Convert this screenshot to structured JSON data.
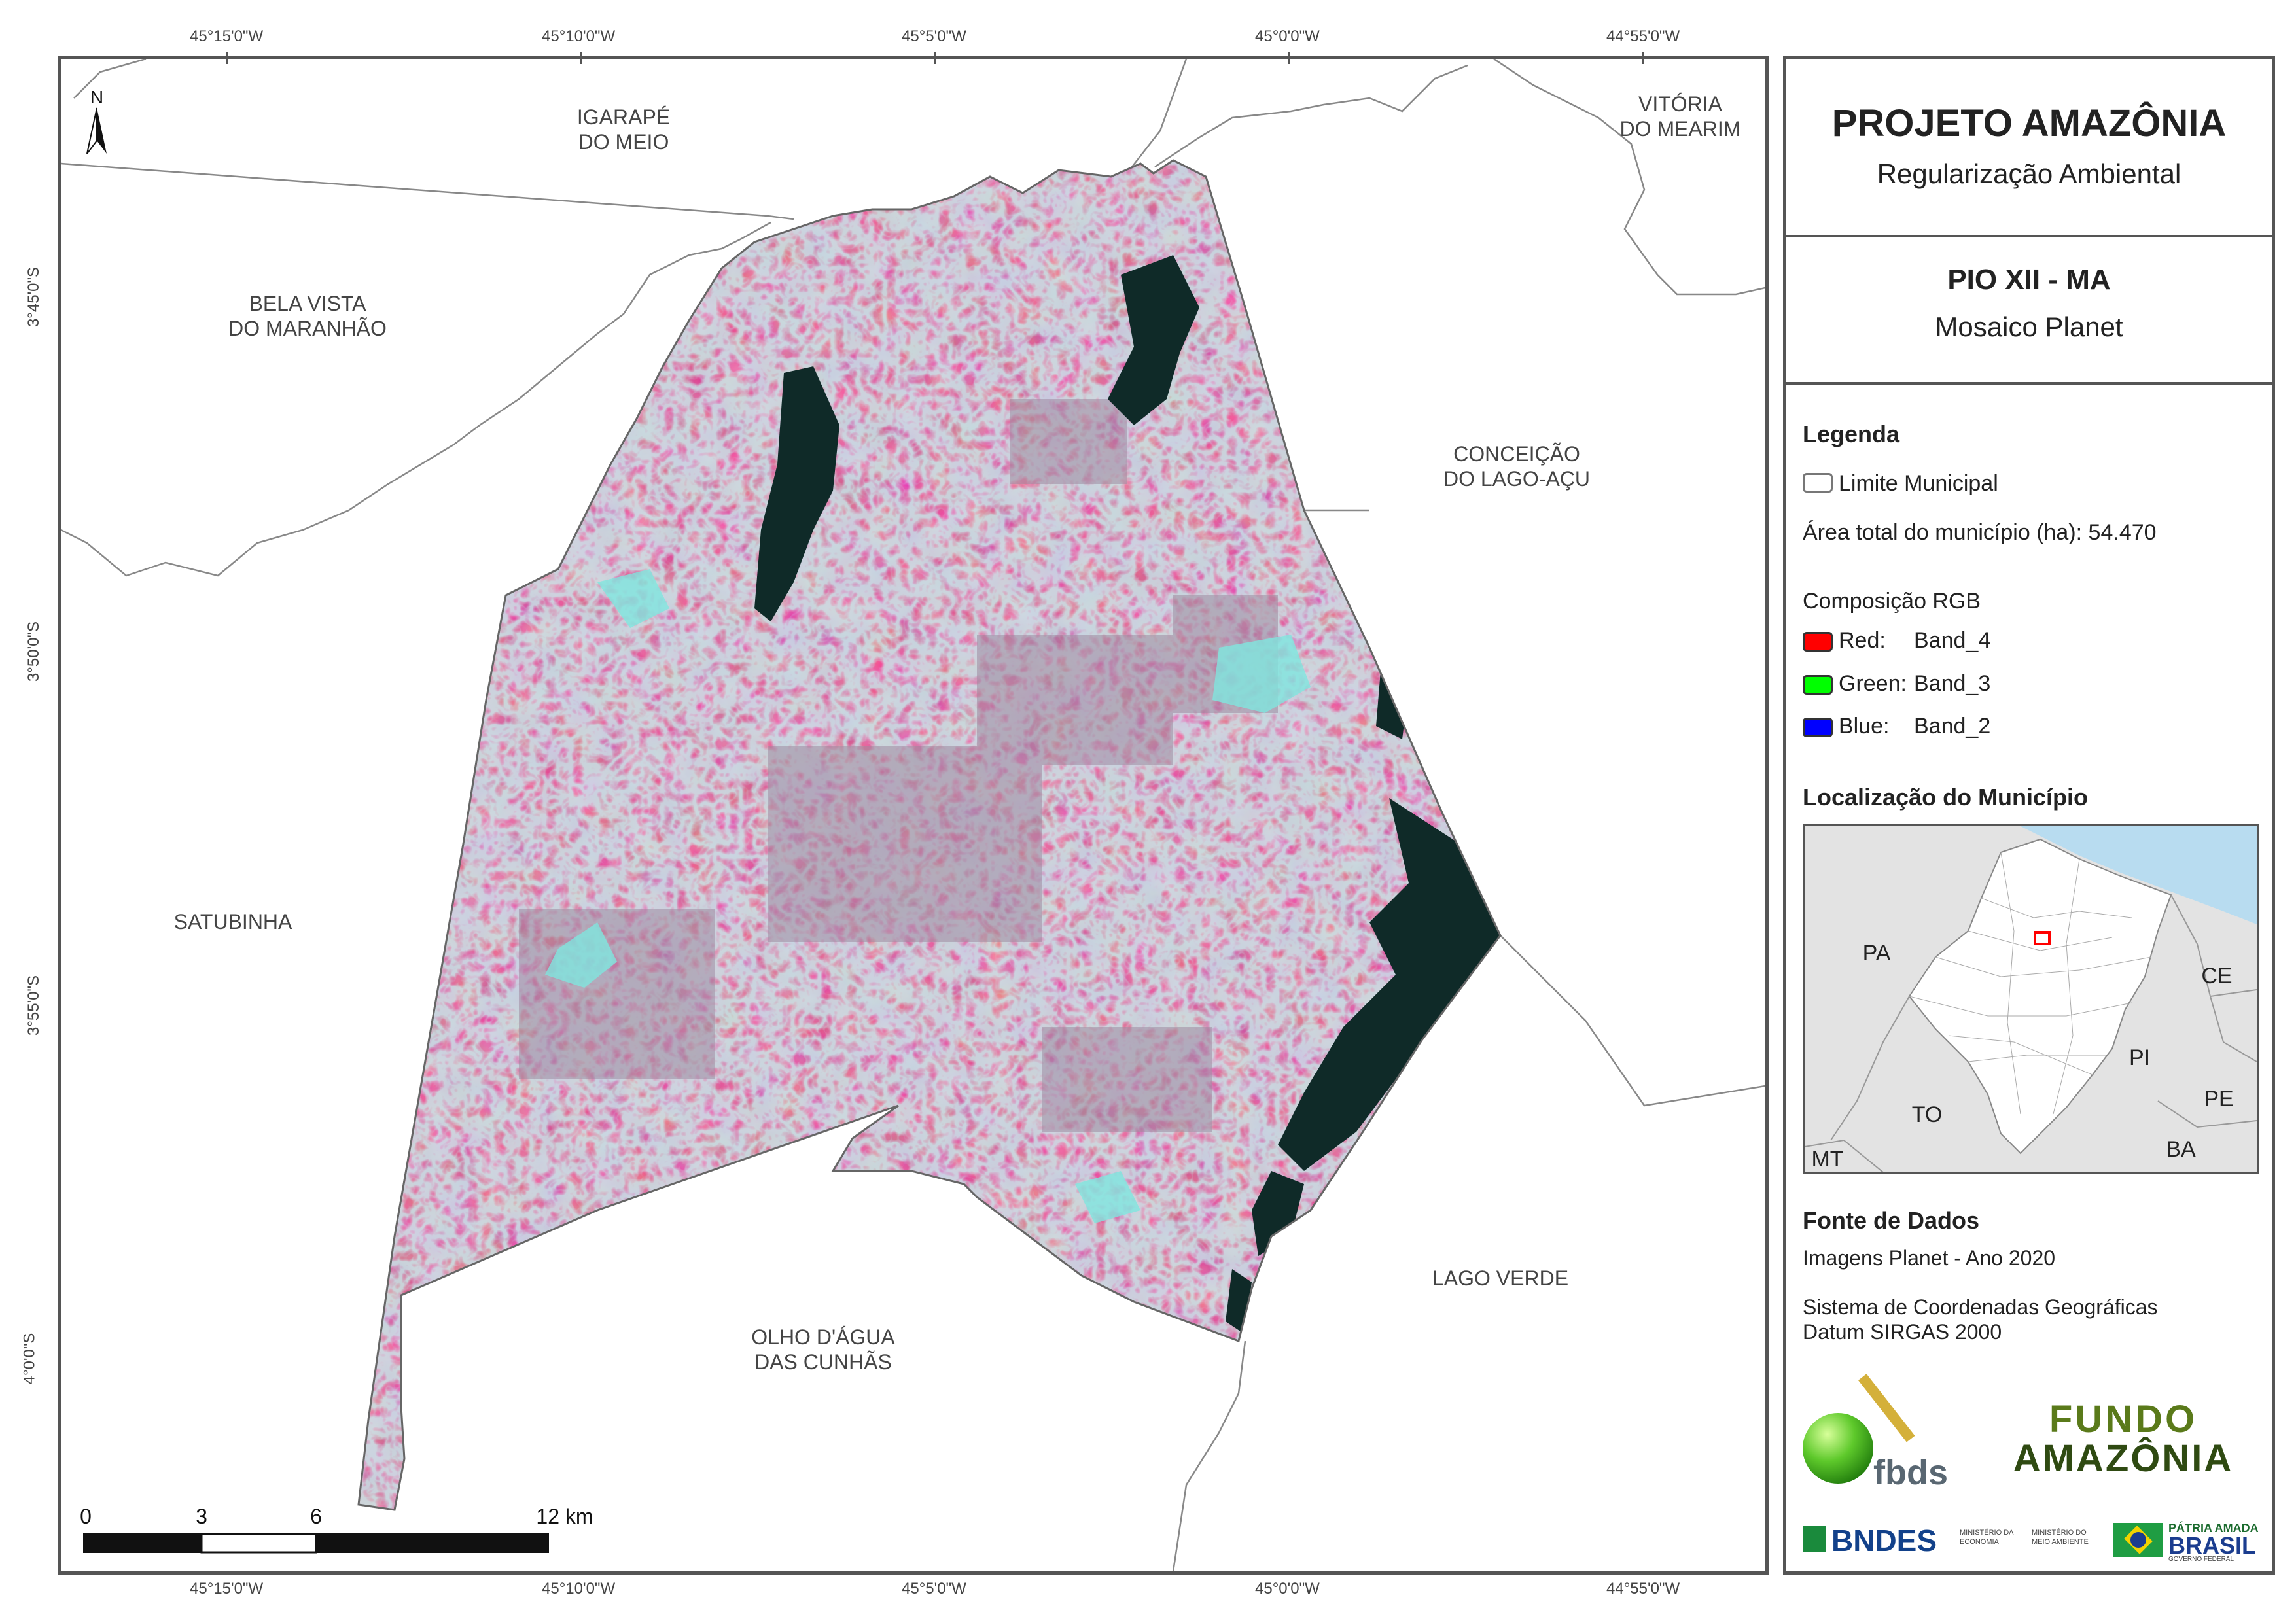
{
  "header": {
    "project": "PROJETO AMAZÔNIA",
    "subtitle": "Regularização Ambiental",
    "municipality": "PIO XII - MA",
    "mosaic": "Mosaico Planet"
  },
  "coords": {
    "top": [
      "45°15'0\"W",
      "45°10'0\"W",
      "45°5'0\"W",
      "45°0'0\"W",
      "44°55'0\"W"
    ],
    "bottom": [
      "45°15'0\"W",
      "45°10'0\"W",
      "45°5'0\"W",
      "45°0'0\"W",
      "44°55'0\"W"
    ],
    "left": [
      "3°45'0\"S",
      "3°50'0\"S",
      "3°55'0\"S",
      "4°0'0\"S"
    ]
  },
  "north_arrow": "N",
  "municipalities": {
    "igarape": [
      "IGARAPÉ",
      "DO MEIO"
    ],
    "vitoria": [
      "VITÓRIA",
      "DO MEARIM"
    ],
    "bela_vista": [
      "BELA VISTA",
      "DO MARANHÃO"
    ],
    "conceicao": [
      "CONCEIÇÃO",
      "DO LAGO-AÇU"
    ],
    "satubinha": "SATUBINHA",
    "olho_dagua": [
      "OLHO D'ÁGUA",
      "DAS CUNHÃS"
    ],
    "lago_verde": "LAGO VERDE"
  },
  "scale": {
    "labels": [
      "0",
      "3",
      "6",
      "12 km"
    ]
  },
  "legend": {
    "heading": "Legenda",
    "limite": "Limite Municipal",
    "area": "Área total do município (ha): 54.470",
    "rgb_heading": "Composição RGB",
    "bands": [
      {
        "channel": "Red:",
        "band": "Band_4",
        "color": "#ff0000"
      },
      {
        "channel": "Green:",
        "band": "Band_3",
        "color": "#00ff00"
      },
      {
        "channel": "Blue:",
        "band": "Band_2",
        "color": "#0000ff"
      }
    ],
    "loc_heading": "Localização do Município",
    "states": [
      "PA",
      "CE",
      "PI",
      "PE",
      "TO",
      "BA",
      "MT"
    ]
  },
  "sources": {
    "heading": "Fonte de Dados",
    "images": "Imagens Planet - Ano 2020",
    "crs_1": "Sistema de Coordenadas Geográficas",
    "crs_2": "Datum SIRGAS 2000"
  },
  "logos": {
    "fbds": "fbds",
    "fundo_1": "FUNDO",
    "fundo_2": "AMAZÔNIA",
    "bndes": "BNDES",
    "min_economia": "MINISTÉRIO DA ECONOMIA",
    "min_ambiente": "MINISTÉRIO DO MEIO AMBIENTE",
    "patria": "PÁTRIA AMADA",
    "brasil": "BRASIL",
    "gov": "GOVERNO FEDERAL"
  },
  "colors": {
    "vegetation": "#b2305e",
    "water": "#0f2a28",
    "exposed": "#7fe0d8",
    "boundary": "#777777"
  }
}
